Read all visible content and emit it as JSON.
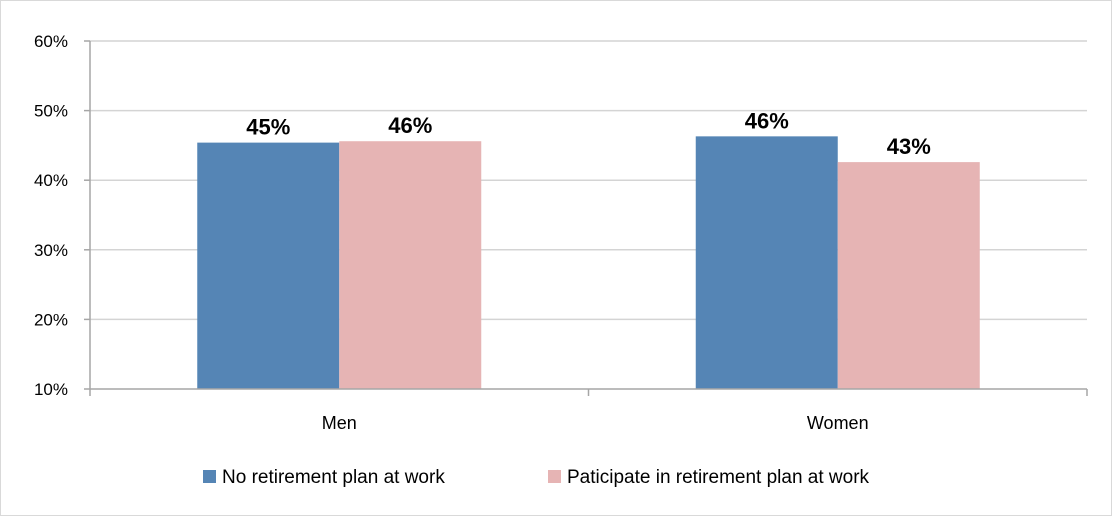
{
  "chart_data": {
    "type": "bar",
    "title": "",
    "xlabel": "",
    "ylabel": "",
    "categories": [
      "Men",
      "Women"
    ],
    "series": [
      {
        "name": "No retirement plan at work",
        "values": [
          45.4,
          46.3
        ],
        "labels": [
          "45%",
          "46%"
        ],
        "color": "#5585b5"
      },
      {
        "name": "Paticipate in retirement plan at work",
        "values": [
          45.6,
          42.6
        ],
        "labels": [
          "46%",
          "43%"
        ],
        "color": "#e6b4b4"
      }
    ],
    "ylim": [
      10,
      60
    ],
    "yticks": [
      10,
      20,
      30,
      40,
      50,
      60
    ],
    "ytick_labels": [
      "10%",
      "20%",
      "30%",
      "40%",
      "50%",
      "60%"
    ],
    "grid": true,
    "legend": "bottom"
  }
}
